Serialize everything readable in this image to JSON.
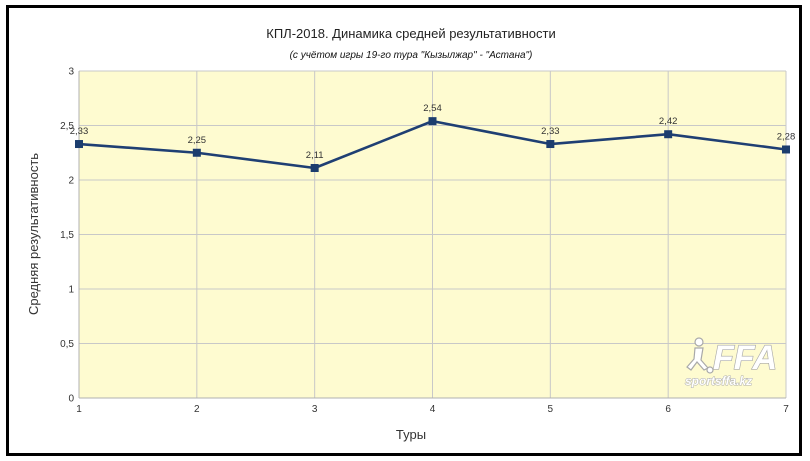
{
  "chart_data": {
    "type": "line",
    "title": "КПЛ-2018. Динамика средней результативности",
    "subtitle": "(с учётом игры 19-го тура \"Кызылжар\" - \"Астана\")",
    "xlabel": "Туры",
    "ylabel": "Средняя результативность",
    "x": [
      1,
      2,
      3,
      4,
      5,
      6,
      7
    ],
    "x_tick_labels": [
      "1",
      "2",
      "3",
      "4",
      "5",
      "6",
      "7"
    ],
    "values": [
      2.33,
      2.25,
      2.11,
      2.54,
      2.33,
      2.42,
      2.28
    ],
    "data_labels": [
      "2,33",
      "2,25",
      "2,11",
      "2,54",
      "2,33",
      "2,42",
      "2,28"
    ],
    "ylim": [
      0,
      3
    ],
    "y_ticks": [
      0,
      0.5,
      1,
      1.5,
      2,
      2.5,
      3
    ],
    "y_tick_labels": [
      "0",
      "0,5",
      "1",
      "1,5",
      "2",
      "2,5",
      "3"
    ],
    "grid": true,
    "colors": {
      "line": "#1f3f73",
      "marker": "#1c3d6e",
      "plot_background": "#fefbd0",
      "grid": "#c8c8c8"
    }
  },
  "watermark": {
    "logo_text": "FFA",
    "site_text": "sportsffa.kz",
    "icon": "football-player-icon"
  }
}
